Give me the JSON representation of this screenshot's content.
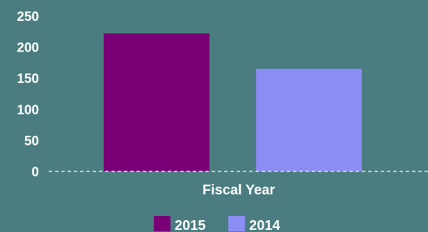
{
  "background_color": "#4b7d80",
  "chart_data": {
    "type": "bar",
    "title": "",
    "xlabel": "Fiscal Year",
    "ylabel": "",
    "ylim": [
      0,
      250
    ],
    "yticks": [
      0,
      50,
      100,
      150,
      200,
      250
    ],
    "grid": false,
    "baseline_style": "dashed",
    "legend_position": "bottom",
    "series": [
      {
        "name": "2015",
        "color": "#7a0078",
        "values": [
          222
        ]
      },
      {
        "name": "2014",
        "color": "#8c8cf5",
        "values": [
          165
        ]
      }
    ]
  }
}
